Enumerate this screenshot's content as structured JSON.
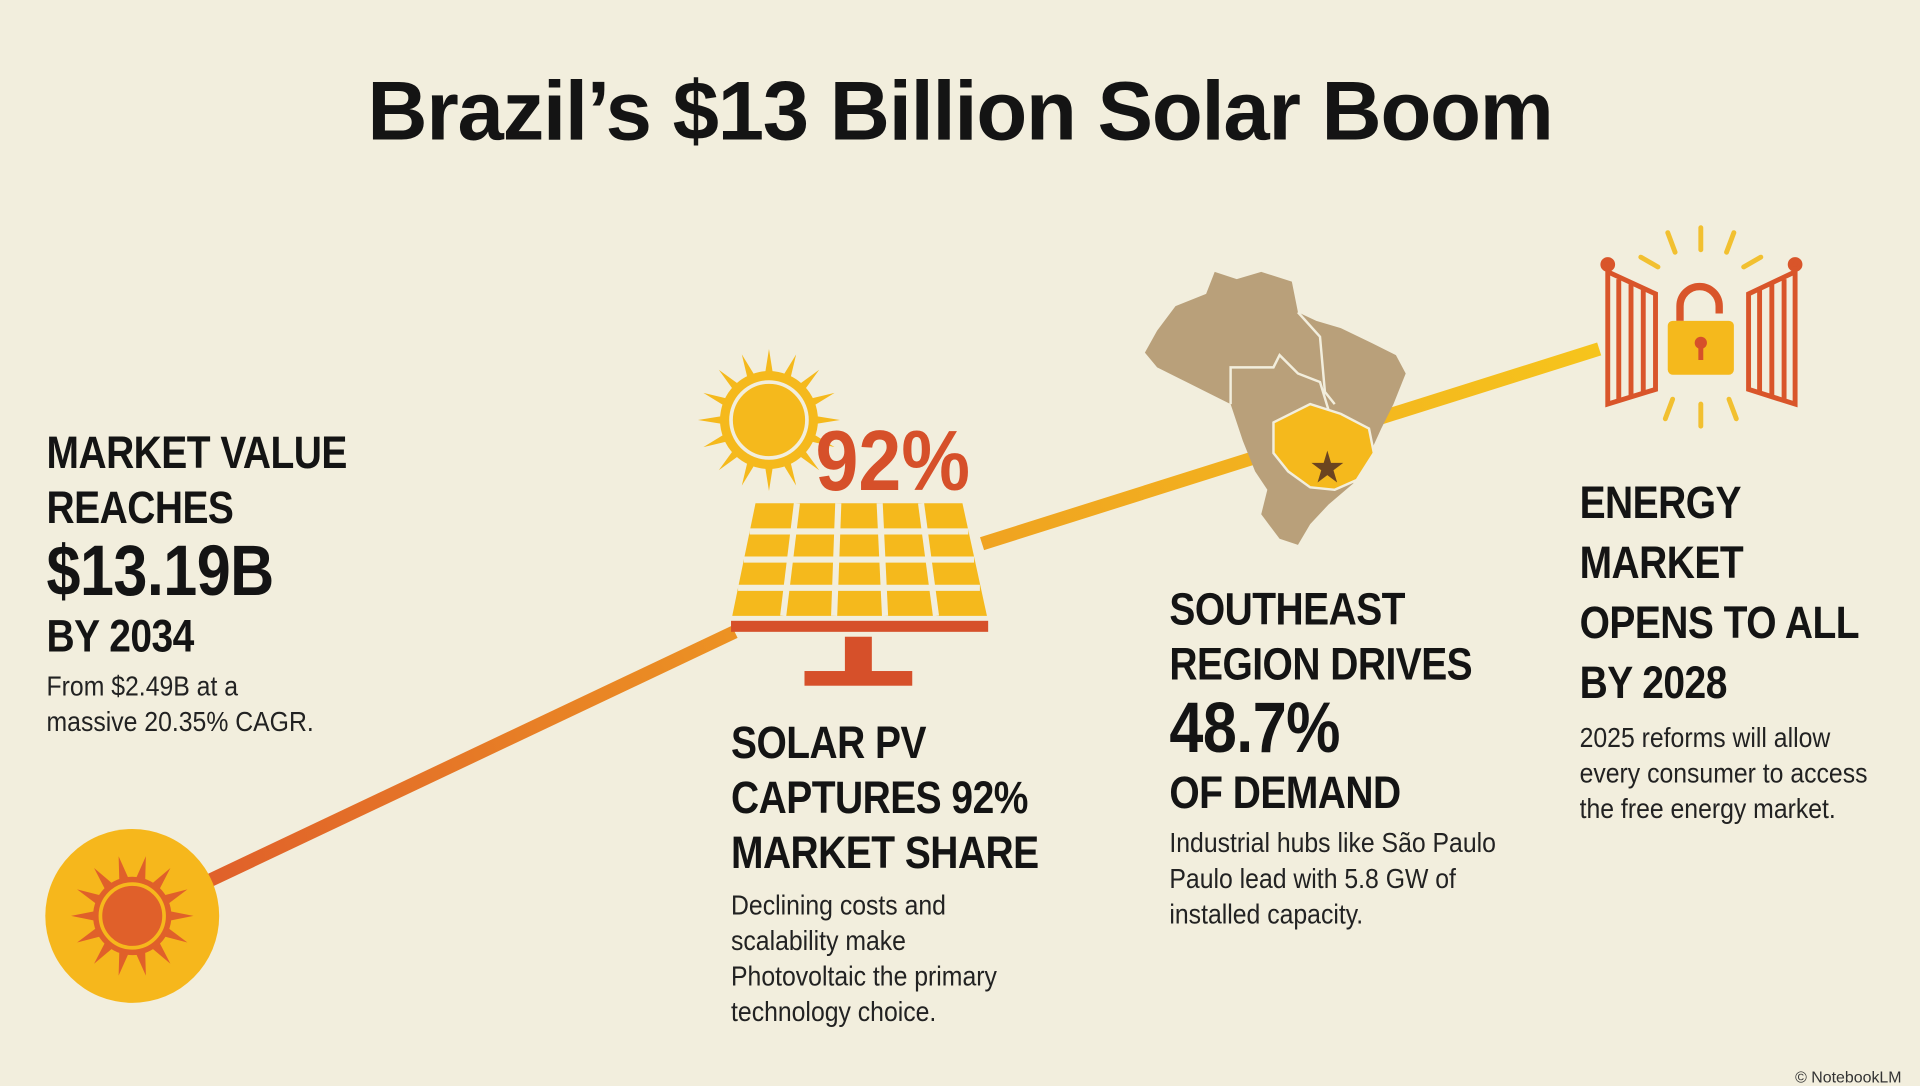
{
  "title": "Brazil’s $13 Billion Solar Boom",
  "colors": {
    "background": "#f2eedd",
    "yellow": "#f5b91c",
    "orange": "#e0642a",
    "red": "#d6502a",
    "map": "#b9a07a",
    "text": "#141414"
  },
  "icons": [
    "sun-icon",
    "solar-panel-icon",
    "brazil-map-icon",
    "star-icon",
    "open-gate-icon",
    "unlocked-padlock-icon"
  ],
  "panel_badge": "92%",
  "sections": [
    {
      "heading_lines": [
        "MARKET VALUE",
        "REACHES"
      ],
      "value": "$13.19B",
      "heading_after": [
        "BY 2034"
      ],
      "body_lines": [
        "From $2.49B at a",
        "massive 20.35% CAGR."
      ]
    },
    {
      "heading_lines": [
        "SOLAR PV",
        "CAPTURES 92%",
        "MARKET SHARE"
      ],
      "body_lines": [
        "Declining costs and",
        "scalability make",
        "Photovoltaic the primary",
        "technology choice."
      ]
    },
    {
      "heading_lines": [
        "SOUTHEAST",
        "REGION DRIVES"
      ],
      "value": "48.7%",
      "heading_after": [
        "OF DEMAND"
      ],
      "body_lines": [
        "Industrial hubs like São Paulo",
        "Paulo lead with 5.8 GW of",
        "installed capacity."
      ]
    },
    {
      "heading_lines": [
        "ENERGY",
        "MARKET",
        "OPENS TO ALL",
        "BY 2028"
      ],
      "body_lines": [
        "2025 reforms will allow",
        "every consumer to access",
        "the free energy market."
      ]
    }
  ],
  "watermark": "© NotebookLM"
}
